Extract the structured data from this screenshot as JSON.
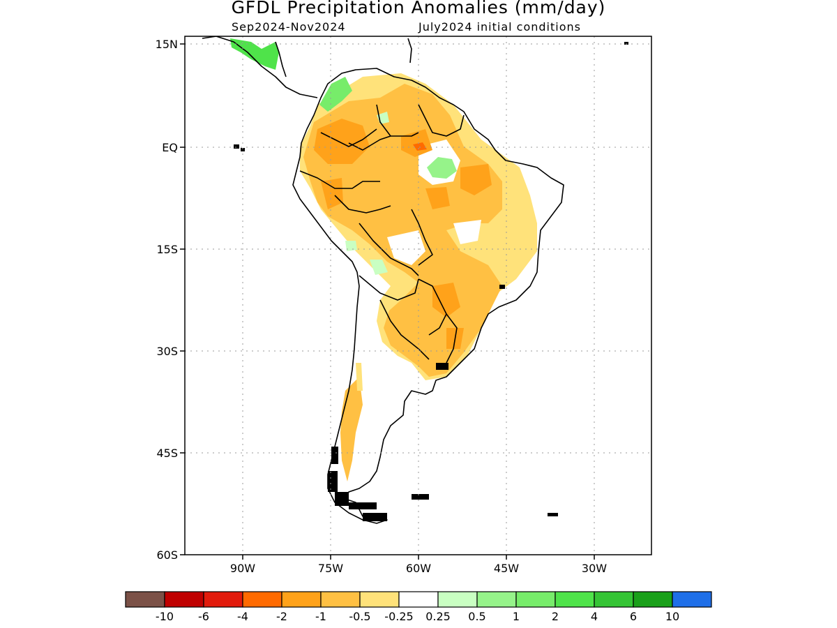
{
  "title": "GFDL Precipitation Anomalies (mm/day)",
  "subtitle_period": "Sep2024-Nov2024",
  "subtitle_init": "July2024 initial conditions",
  "lat_labels": [
    "15N",
    "EQ",
    "15S",
    "30S",
    "45S",
    "60S"
  ],
  "lon_labels": [
    "90W",
    "75W",
    "60W",
    "45W",
    "30W"
  ],
  "colorbar": {
    "colors": [
      "#7b5147",
      "#bf0000",
      "#e21b0c",
      "#ff6a00",
      "#ffa21a",
      "#ffc043",
      "#ffe27a",
      "#ffffff",
      "#c9ffc2",
      "#96f38a",
      "#77ec6a",
      "#4fe34a",
      "#35c435",
      "#1aa01a",
      "#1f6fe8"
    ],
    "labels": [
      "-10",
      "-6",
      "-4",
      "-2",
      "-1",
      "-0.5",
      "-0.25",
      "0.25",
      "0.5",
      "1",
      "2",
      "4",
      "6",
      "10"
    ]
  }
}
